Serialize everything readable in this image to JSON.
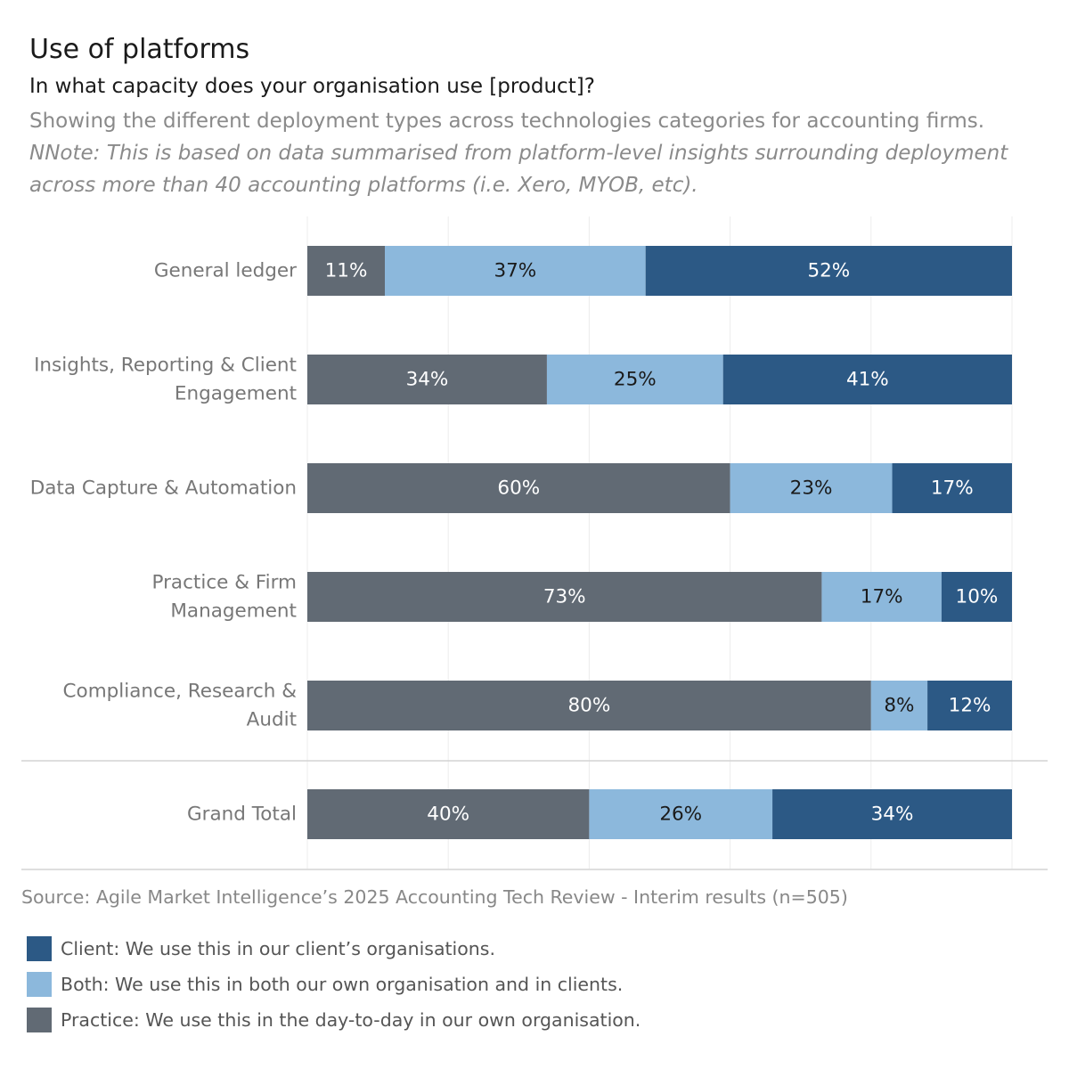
{
  "header": {
    "title": "Use of platforms",
    "subtitle": "In what capacity does your organisation use [product]?",
    "description": "Showing the different deployment types across technologies categories for accounting firms.",
    "note": "NNote: This is based on data summarised from platform-level insights surrounding deployment across more than 40 accounting platforms (i.e. Xero, MYOB, etc)."
  },
  "chart_data": {
    "type": "bar",
    "orientation": "horizontal",
    "stacked": true,
    "normalized": true,
    "categories": [
      [
        "General ledger"
      ],
      [
        "Insights, Reporting & Client",
        "Engagement"
      ],
      [
        "Data Capture & Automation"
      ],
      [
        "Practice & Firm",
        "Management"
      ],
      [
        "Compliance, Research &",
        "Audit"
      ],
      [
        "Grand Total"
      ]
    ],
    "series": [
      {
        "name": "Practice",
        "color": "#616a74",
        "label_color": "#ffffff",
        "values": [
          11,
          34,
          60,
          73,
          80,
          40
        ]
      },
      {
        "name": "Both",
        "color": "#8cb8dc",
        "label_color": "#1a1a1a",
        "values": [
          37,
          25,
          23,
          17,
          8,
          26
        ]
      },
      {
        "name": "Client",
        "color": "#2c5985",
        "label_color": "#ffffff",
        "values": [
          52,
          41,
          17,
          10,
          12,
          34
        ]
      }
    ],
    "value_suffix": "%",
    "xlim": [
      0,
      100
    ],
    "grid": true
  },
  "source": "Source: Agile Market Intelligence’s 2025 Accounting Tech Review - Interim results (n=505)",
  "legend": {
    "items": [
      {
        "label": "Client: We use this in our client’s organisations.",
        "color": "#2c5985"
      },
      {
        "label": "Both: We use this in both our own organisation and in clients.",
        "color": "#8cb8dc"
      },
      {
        "label": "Practice: We use this in the day-to-day in our own organisation.",
        "color": "#616a74"
      }
    ]
  }
}
